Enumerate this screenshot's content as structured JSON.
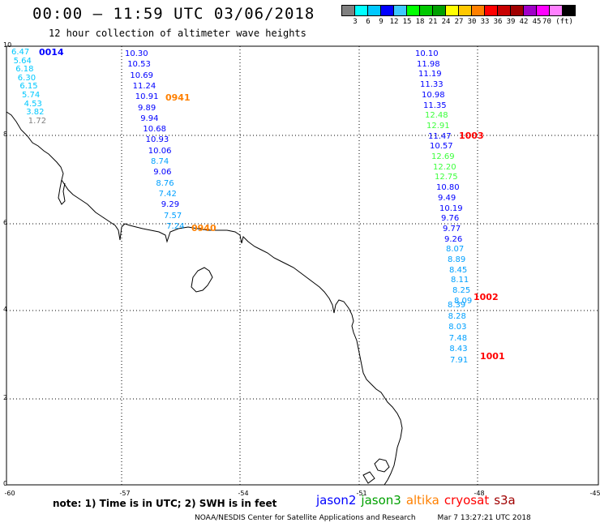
{
  "header": {
    "title": "00:00 — 11:59 UTC 03/06/2018",
    "subtitle": "12 hour collection of altimeter wave heights"
  },
  "colorbar": {
    "colors": [
      "#808080",
      "#00ffff",
      "#00c8ff",
      "#0000ff",
      "#3cc8ff",
      "#00ff00",
      "#00c800",
      "#00a000",
      "#ffff00",
      "#ffc800",
      "#ff8000",
      "#ff0000",
      "#c80000",
      "#a00000",
      "#a000c8",
      "#ff00ff",
      "#ff80ff",
      "#000000"
    ],
    "labels": [
      "3",
      "6",
      "9",
      "12",
      "15",
      "18",
      "21",
      "24",
      "27",
      "30",
      "33",
      "36",
      "39",
      "42",
      "45",
      "70 (ft)"
    ]
  },
  "axes": {
    "y_ticks": [
      "10",
      "8",
      "6",
      "4",
      "2",
      "0"
    ],
    "x_ticks": [
      "-60",
      "-57",
      "-54",
      "-51",
      "-48",
      "-45"
    ]
  },
  "tracks": [
    {
      "time": "0014",
      "time_color": "#0000ff",
      "values": [
        {
          "v": "6.47",
          "c": "#00c8ff"
        },
        {
          "v": "5.64",
          "c": "#00c8ff"
        },
        {
          "v": "6.18",
          "c": "#00c8ff"
        },
        {
          "v": "6.30",
          "c": "#00c8ff"
        },
        {
          "v": "6.15",
          "c": "#00c8ff"
        },
        {
          "v": "5.74",
          "c": "#00c8ff"
        },
        {
          "v": "4.53",
          "c": "#00c8ff"
        },
        {
          "v": "3.82",
          "c": "#00c8ff"
        },
        {
          "v": "1.72",
          "c": "#808080"
        }
      ]
    },
    {
      "time": "0941",
      "time_color": "#ff8000",
      "values": [
        {
          "v": "10.30",
          "c": "#0000ff"
        },
        {
          "v": "10.53",
          "c": "#0000ff"
        },
        {
          "v": "10.69",
          "c": "#0000ff"
        },
        {
          "v": "11.24",
          "c": "#0000ff"
        },
        {
          "v": "10.91",
          "c": "#0000ff"
        },
        {
          "v": "9.89",
          "c": "#0000ff"
        },
        {
          "v": "9.94",
          "c": "#0000ff"
        },
        {
          "v": "10.68",
          "c": "#0000ff"
        },
        {
          "v": "10.93",
          "c": "#0000ff"
        },
        {
          "v": "10.06",
          "c": "#0000ff"
        },
        {
          "v": "8.74",
          "c": "#00a0ff"
        },
        {
          "v": "9.06",
          "c": "#0000ff"
        },
        {
          "v": "8.76",
          "c": "#00a0ff"
        },
        {
          "v": "7.42",
          "c": "#00a0ff"
        },
        {
          "v": "9.29",
          "c": "#0000ff"
        },
        {
          "v": "7.57",
          "c": "#00a0ff"
        },
        {
          "v": "7.24",
          "c": "#00a0ff"
        }
      ]
    },
    {
      "time": "0940",
      "time_color": "#ff8000"
    },
    {
      "time": "1003",
      "time_color": "#ff0000",
      "values": [
        {
          "v": "10.10",
          "c": "#0000ff"
        },
        {
          "v": "11.98",
          "c": "#0000ff"
        },
        {
          "v": "11.19",
          "c": "#0000ff"
        },
        {
          "v": "11.33",
          "c": "#0000ff"
        },
        {
          "v": "10.98",
          "c": "#0000ff"
        },
        {
          "v": "11.35",
          "c": "#0000ff"
        },
        {
          "v": "12.48",
          "c": "#3cff3c"
        },
        {
          "v": "12.91",
          "c": "#3cff3c"
        },
        {
          "v": "11.47",
          "c": "#0000ff"
        },
        {
          "v": "10.57",
          "c": "#0000ff"
        },
        {
          "v": "12.69",
          "c": "#3cff3c"
        },
        {
          "v": "12.20",
          "c": "#3cff3c"
        },
        {
          "v": "12.75",
          "c": "#3cff3c"
        },
        {
          "v": "10.80",
          "c": "#0000ff"
        },
        {
          "v": "9.49",
          "c": "#0000ff"
        },
        {
          "v": "10.19",
          "c": "#0000ff"
        },
        {
          "v": "9.76",
          "c": "#0000ff"
        },
        {
          "v": "9.77",
          "c": "#0000ff"
        },
        {
          "v": "9.26",
          "c": "#0000ff"
        },
        {
          "v": "8.07",
          "c": "#00a0ff"
        },
        {
          "v": "8.89",
          "c": "#00a0ff"
        },
        {
          "v": "8.45",
          "c": "#00a0ff"
        },
        {
          "v": "8.11",
          "c": "#00a0ff"
        },
        {
          "v": "8.25",
          "c": "#00a0ff"
        },
        {
          "v": "8.09",
          "c": "#00a0ff"
        }
      ]
    },
    {
      "time": "1002",
      "time_color": "#ff0000",
      "values": [
        {
          "v": "8.39",
          "c": "#00a0ff"
        },
        {
          "v": "8.28",
          "c": "#00a0ff"
        },
        {
          "v": "8.03",
          "c": "#00a0ff"
        },
        {
          "v": "7.48",
          "c": "#00a0ff"
        },
        {
          "v": "8.43",
          "c": "#00a0ff"
        },
        {
          "v": "7.91",
          "c": "#00a0ff"
        }
      ]
    },
    {
      "time": "1001",
      "time_color": "#ff0000"
    }
  ],
  "note": "note:  1) Time is in UTC;  2) SWH is in feet",
  "legend": [
    {
      "label": "jason2",
      "color": "#0000ff"
    },
    {
      "label": "jason3",
      "color": "#00a000"
    },
    {
      "label": "altika",
      "color": "#ff8000"
    },
    {
      "label": "cryosat",
      "color": "#ff0000"
    },
    {
      "label": "s3a",
      "color": "#a00000"
    }
  ],
  "footer": {
    "left": "NOAA/NESDIS Center for Satellite Applications and Research",
    "right": "Mar  7 13:27:21 UTC 2018"
  }
}
